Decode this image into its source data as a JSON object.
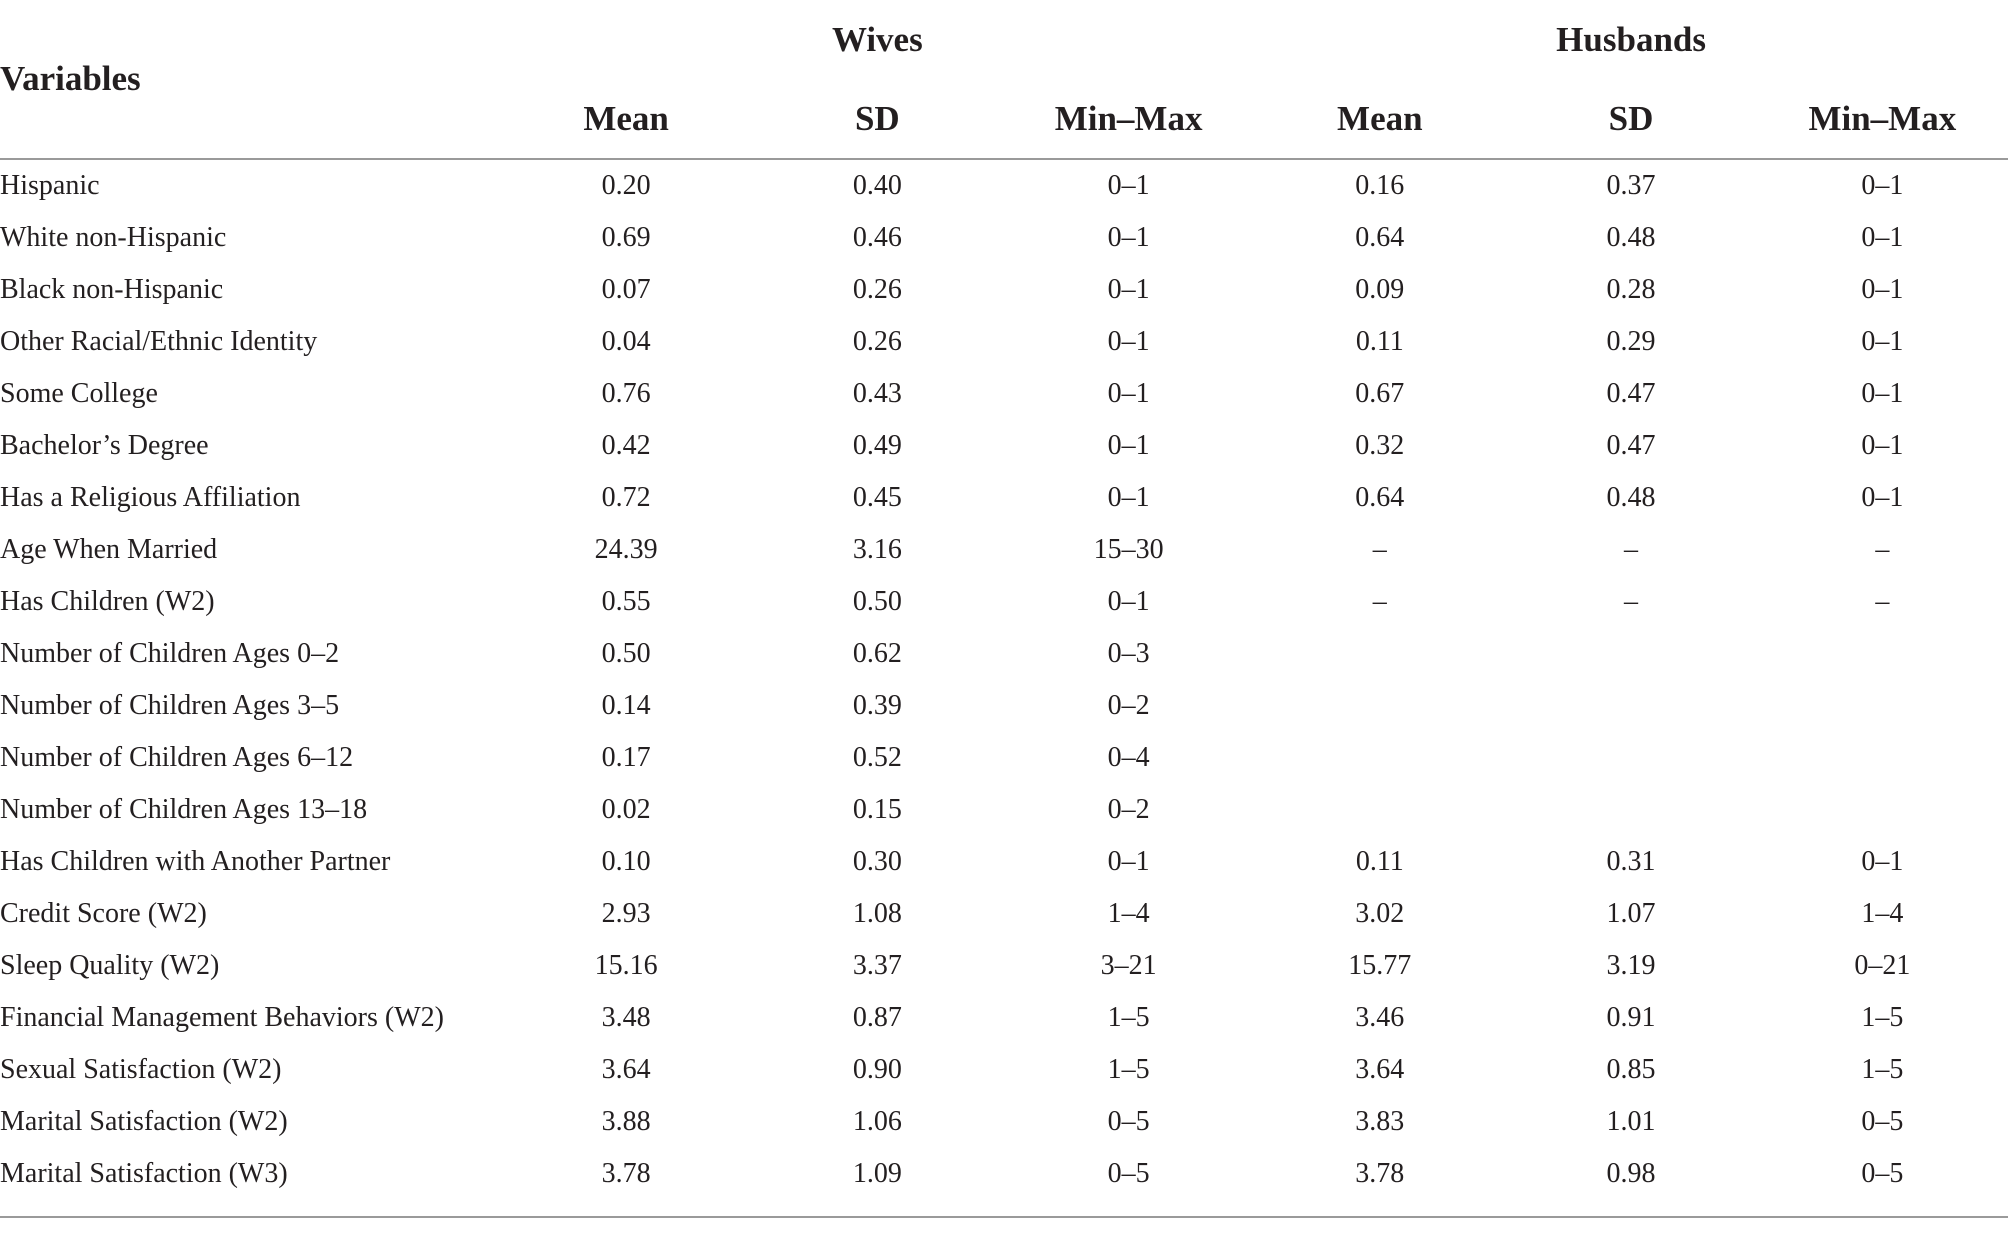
{
  "header": {
    "variables_label": "Variables",
    "groups": [
      "Wives",
      "Husbands"
    ],
    "subheaders": [
      "Mean",
      "SD",
      "Min–Max",
      "Mean",
      "SD",
      "Min–Max"
    ]
  },
  "rows": [
    {
      "label": "Hispanic",
      "values": [
        "0.20",
        "0.40",
        "0–1",
        "0.16",
        "0.37",
        "0–1"
      ]
    },
    {
      "label": "White non-Hispanic",
      "values": [
        "0.69",
        "0.46",
        "0–1",
        "0.64",
        "0.48",
        "0–1"
      ]
    },
    {
      "label": "Black non-Hispanic",
      "values": [
        "0.07",
        "0.26",
        "0–1",
        "0.09",
        "0.28",
        "0–1"
      ]
    },
    {
      "label": "Other Racial/Ethnic Identity",
      "values": [
        "0.04",
        "0.26",
        "0–1",
        "0.11",
        "0.29",
        "0–1"
      ]
    },
    {
      "label": "Some College",
      "values": [
        "0.76",
        "0.43",
        "0–1",
        "0.67",
        "0.47",
        "0–1"
      ]
    },
    {
      "label": "Bachelor’s Degree",
      "values": [
        "0.42",
        "0.49",
        "0–1",
        "0.32",
        "0.47",
        "0–1"
      ]
    },
    {
      "label": "Has a Religious Affiliation",
      "values": [
        "0.72",
        "0.45",
        "0–1",
        "0.64",
        "0.48",
        "0–1"
      ]
    },
    {
      "label": "Age When Married",
      "values": [
        "24.39",
        "3.16",
        "15–30",
        "–",
        "–",
        "–"
      ]
    },
    {
      "label": "Has Children (W2)",
      "values": [
        "0.55",
        "0.50",
        "0–1",
        "–",
        "–",
        "–"
      ]
    },
    {
      "label": "Number of Children Ages 0–2",
      "values": [
        "0.50",
        "0.62",
        "0–3",
        "",
        "",
        ""
      ]
    },
    {
      "label": "Number of Children Ages 3–5",
      "values": [
        "0.14",
        "0.39",
        "0–2",
        "",
        "",
        ""
      ]
    },
    {
      "label": "Number of Children Ages 6–12",
      "values": [
        "0.17",
        "0.52",
        "0–4",
        "",
        "",
        ""
      ]
    },
    {
      "label": "Number of Children Ages 13–18",
      "values": [
        "0.02",
        "0.15",
        "0–2",
        "",
        "",
        ""
      ]
    },
    {
      "label": "Has Children with Another Partner",
      "values": [
        "0.10",
        "0.30",
        "0–1",
        "0.11",
        "0.31",
        "0–1"
      ]
    },
    {
      "label": "Credit Score (W2)",
      "values": [
        "2.93",
        "1.08",
        "1–4",
        "3.02",
        "1.07",
        "1–4"
      ]
    },
    {
      "label": "Sleep Quality (W2)",
      "values": [
        "15.16",
        "3.37",
        "3–21",
        "15.77",
        "3.19",
        "0–21"
      ]
    },
    {
      "label": "Financial Management Behaviors (W2)",
      "values": [
        "3.48",
        "0.87",
        "1–5",
        "3.46",
        "0.91",
        "1–5"
      ]
    },
    {
      "label": "Sexual Satisfaction (W2)",
      "values": [
        "3.64",
        "0.90",
        "1–5",
        "3.64",
        "0.85",
        "1–5"
      ]
    },
    {
      "label": "Marital Satisfaction (W2)",
      "values": [
        "3.88",
        "1.06",
        "0–5",
        "3.83",
        "1.01",
        "0–5"
      ]
    },
    {
      "label": "Marital Satisfaction (W3)",
      "values": [
        "3.78",
        "1.09",
        "0–5",
        "3.78",
        "0.98",
        "0–5"
      ]
    }
  ]
}
